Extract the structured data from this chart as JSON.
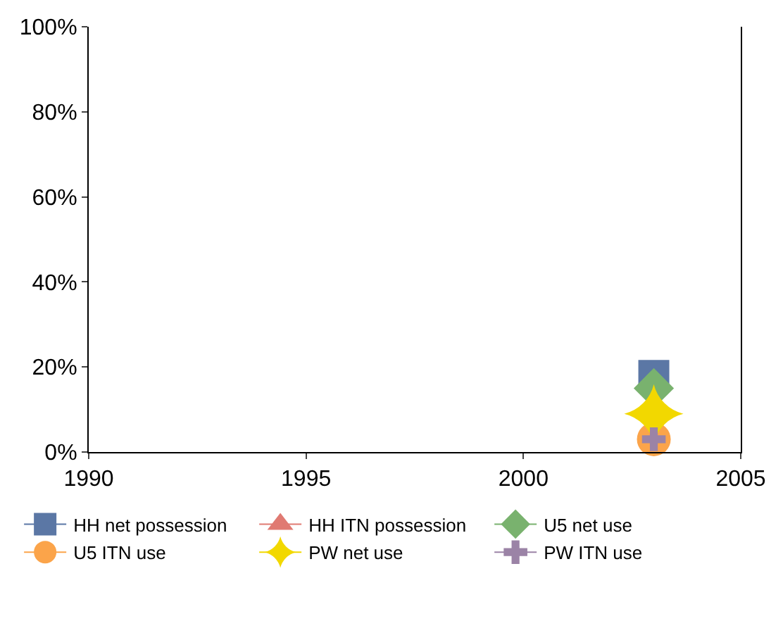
{
  "chart_data": {
    "type": "scatter",
    "x": [
      2003
    ],
    "series": [
      {
        "name": "HH net possession",
        "color": "#5b77a5",
        "values": [
          18
        ],
        "marker": "square"
      },
      {
        "name": "HH ITN possession",
        "color": "#e07a72",
        "values": [
          null
        ],
        "marker": "triangle"
      },
      {
        "name": "U5 net use",
        "color": "#79b26e",
        "values": [
          15
        ],
        "marker": "diamond"
      },
      {
        "name": "U5 ITN use",
        "color": "#fba44a",
        "values": [
          3
        ],
        "marker": "circle"
      },
      {
        "name": "PW net use",
        "color": "#f2d800",
        "values": [
          9
        ],
        "marker": "star"
      },
      {
        "name": "PW ITN use",
        "color": "#9b83a6",
        "values": [
          3
        ],
        "marker": "cross"
      }
    ],
    "xlim": [
      1990,
      2005
    ],
    "xticks": [
      1990,
      1995,
      2000,
      2005
    ],
    "ylim": [
      0,
      100
    ],
    "yticks": [
      {
        "value": 0,
        "label": "0%"
      },
      {
        "value": 20,
        "label": "20%"
      },
      {
        "value": 40,
        "label": "40%"
      },
      {
        "value": 60,
        "label": "60%"
      },
      {
        "value": 80,
        "label": "80%"
      },
      {
        "value": 100,
        "label": "100%"
      }
    ],
    "legend": "bottom"
  }
}
